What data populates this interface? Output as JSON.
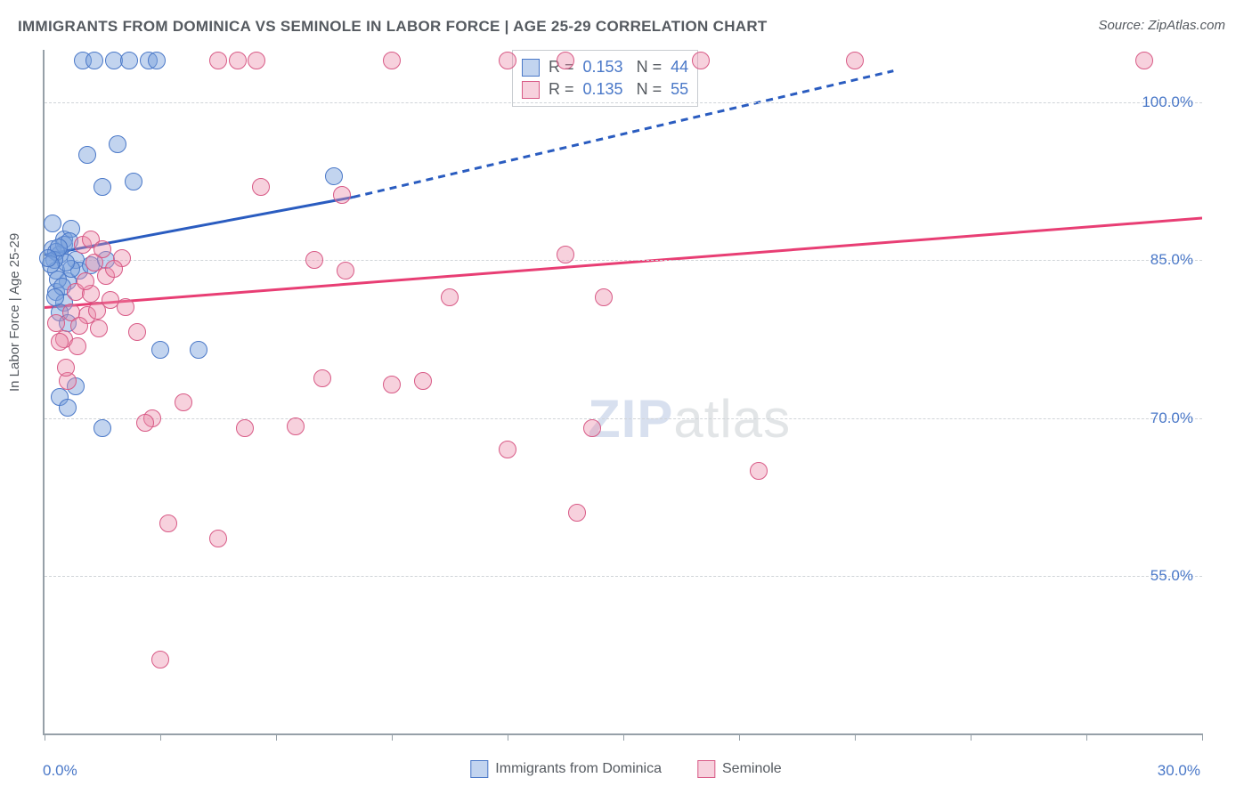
{
  "title": "IMMIGRANTS FROM DOMINICA VS SEMINOLE IN LABOR FORCE | AGE 25-29 CORRELATION CHART",
  "source": "Source: ZipAtlas.com",
  "y_axis_label": "In Labor Force | Age 25-29",
  "watermark": {
    "zip": "ZIP",
    "atlas": "atlas"
  },
  "chart": {
    "type": "scatter",
    "background_color": "#ffffff",
    "grid_color": "#d0d4d8",
    "axis_color": "#96a0a8",
    "text_color": "#555a60",
    "value_color": "#4a78c8",
    "xlim": [
      0,
      30
    ],
    "ylim": [
      40,
      105
    ],
    "x_ticks": [
      0,
      3,
      6,
      9,
      12,
      15,
      18,
      21,
      24,
      27,
      30
    ],
    "x_tick_labels": {
      "min": "0.0%",
      "max": "30.0%"
    },
    "y_gridlines": [
      55,
      70,
      85,
      100
    ],
    "y_tick_labels": [
      "55.0%",
      "70.0%",
      "85.0%",
      "100.0%"
    ],
    "series": [
      {
        "name": "Immigrants from Dominica",
        "marker_fill": "rgba(120,160,220,0.45)",
        "marker_stroke": "#4a78c8",
        "line_color": "#2a5cc0",
        "r": 0.153,
        "n": 44,
        "trend": {
          "x1": 0,
          "y1": 85.5,
          "x2": 8,
          "y2": 91,
          "x_dash_end": 22,
          "y_dash_end": 103
        },
        "points": [
          [
            0.2,
            86
          ],
          [
            0.3,
            84
          ],
          [
            0.4,
            85.5
          ],
          [
            0.5,
            87
          ],
          [
            0.6,
            83
          ],
          [
            0.7,
            88
          ],
          [
            0.3,
            82
          ],
          [
            0.5,
            81
          ],
          [
            0.8,
            85
          ],
          [
            0.4,
            80
          ],
          [
            0.6,
            79
          ],
          [
            0.2,
            88.5
          ],
          [
            1.0,
            104
          ],
          [
            1.3,
            104
          ],
          [
            1.8,
            104
          ],
          [
            2.2,
            104
          ],
          [
            2.7,
            104
          ],
          [
            2.9,
            104
          ],
          [
            1.1,
            95
          ],
          [
            1.5,
            92
          ],
          [
            1.9,
            96
          ],
          [
            0.9,
            84
          ],
          [
            1.2,
            84.5
          ],
          [
            2.3,
            92.5
          ],
          [
            1.6,
            85
          ],
          [
            0.4,
            72
          ],
          [
            0.8,
            73
          ],
          [
            0.6,
            71
          ],
          [
            3.0,
            76.5
          ],
          [
            4.0,
            76.5
          ],
          [
            1.5,
            69
          ],
          [
            7.5,
            93
          ],
          [
            0.5,
            86.5
          ],
          [
            0.7,
            84.2
          ],
          [
            0.3,
            85.8
          ],
          [
            0.35,
            83.2
          ],
          [
            0.55,
            84.8
          ],
          [
            0.45,
            82.5
          ],
          [
            0.25,
            85
          ],
          [
            0.65,
            86.8
          ],
          [
            0.15,
            84.6
          ],
          [
            0.38,
            86.2
          ],
          [
            0.1,
            85.2
          ],
          [
            0.28,
            81.5
          ]
        ]
      },
      {
        "name": "Seminole",
        "marker_fill": "rgba(235,140,170,0.40)",
        "marker_stroke": "#d85a86",
        "line_color": "#e83e74",
        "r": 0.135,
        "n": 55,
        "trend": {
          "x1": 0,
          "y1": 80.5,
          "x2": 30,
          "y2": 89
        },
        "points": [
          [
            4.5,
            104
          ],
          [
            5.0,
            104
          ],
          [
            5.5,
            104
          ],
          [
            9.0,
            104
          ],
          [
            12.0,
            104
          ],
          [
            13.5,
            104
          ],
          [
            17.0,
            104
          ],
          [
            21.0,
            104
          ],
          [
            28.5,
            104
          ],
          [
            5.6,
            92
          ],
          [
            7.7,
            91.2
          ],
          [
            13.5,
            85.5
          ],
          [
            1.0,
            86.5
          ],
          [
            1.3,
            84.8
          ],
          [
            1.2,
            87
          ],
          [
            1.6,
            83.5
          ],
          [
            2.0,
            85.2
          ],
          [
            1.5,
            86
          ],
          [
            1.8,
            84.2
          ],
          [
            0.8,
            82
          ],
          [
            1.1,
            79.8
          ],
          [
            1.4,
            78.5
          ],
          [
            0.7,
            80
          ],
          [
            2.4,
            78.2
          ],
          [
            1.7,
            81.2
          ],
          [
            7.0,
            85
          ],
          [
            7.8,
            84
          ],
          [
            10.5,
            81.5
          ],
          [
            14.5,
            81.5
          ],
          [
            7.2,
            73.8
          ],
          [
            9.0,
            73.2
          ],
          [
            6.5,
            69.2
          ],
          [
            9.8,
            73.5
          ],
          [
            3.6,
            71.5
          ],
          [
            2.8,
            70
          ],
          [
            12.0,
            67
          ],
          [
            14.2,
            69
          ],
          [
            18.5,
            65
          ],
          [
            13.8,
            61
          ],
          [
            3.2,
            60
          ],
          [
            4.5,
            58.5
          ],
          [
            2.6,
            69.5
          ],
          [
            5.2,
            69
          ],
          [
            3.0,
            47
          ],
          [
            0.5,
            77.5
          ],
          [
            0.9,
            78.8
          ],
          [
            0.6,
            73.5
          ],
          [
            1.2,
            81.8
          ],
          [
            1.05,
            83
          ],
          [
            0.3,
            79
          ],
          [
            0.4,
            77.2
          ],
          [
            0.85,
            76.8
          ],
          [
            0.55,
            74.8
          ],
          [
            1.35,
            80.2
          ],
          [
            2.1,
            80.5
          ]
        ]
      }
    ]
  },
  "bottom_legend": [
    {
      "label": "Immigrants from Dominica",
      "fill": "rgba(120,160,220,0.45)",
      "stroke": "#4a78c8"
    },
    {
      "label": "Seminole",
      "fill": "rgba(235,140,170,0.40)",
      "stroke": "#d85a86"
    }
  ]
}
